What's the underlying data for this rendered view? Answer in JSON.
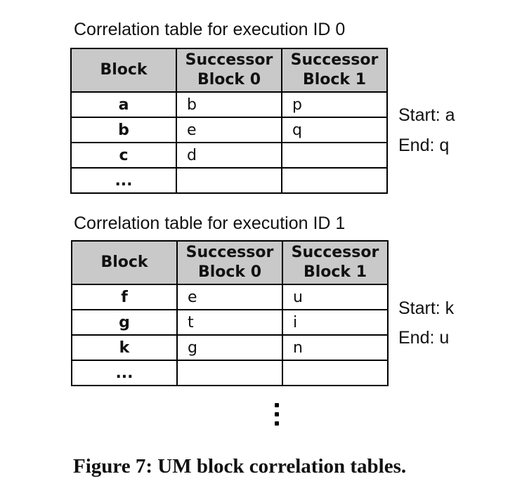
{
  "tables": [
    {
      "caption": "Correlation table for execution ID 0",
      "headers": {
        "block": "Block",
        "succ0_line1": "Successor",
        "succ0_line2": "Block 0",
        "succ1_line1": "Successor",
        "succ1_line2": "Block 1"
      },
      "rows": [
        {
          "block": "a",
          "s0": "b",
          "s1": "p"
        },
        {
          "block": "b",
          "s0": "e",
          "s1": "q"
        },
        {
          "block": "c",
          "s0": "d",
          "s1": ""
        },
        {
          "block": "...",
          "s0": "",
          "s1": ""
        }
      ],
      "start": "Start: a",
      "end": "End: q"
    },
    {
      "caption": "Correlation table for execution ID 1",
      "headers": {
        "block": "Block",
        "succ0_line1": "Successor",
        "succ0_line2": "Block 0",
        "succ1_line1": "Successor",
        "succ1_line2": "Block 1"
      },
      "rows": [
        {
          "block": "f",
          "s0": "e",
          "s1": "u"
        },
        {
          "block": "g",
          "s0": "t",
          "s1": "i"
        },
        {
          "block": "k",
          "s0": "g",
          "s1": "n"
        },
        {
          "block": "...",
          "s0": "",
          "s1": ""
        }
      ],
      "start": "Start: k",
      "end": "End: u"
    }
  ],
  "figure_caption": "Figure 7: UM block correlation tables."
}
